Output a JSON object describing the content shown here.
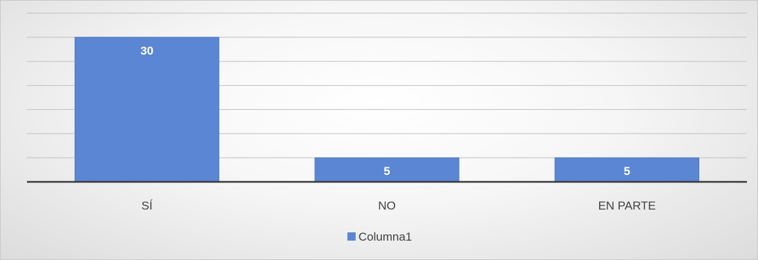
{
  "chart_data": {
    "type": "bar",
    "categories": [
      "SÍ",
      "NO",
      "EN PARTE"
    ],
    "series": [
      {
        "name": "Columna1",
        "values": [
          30,
          5,
          5
        ]
      }
    ],
    "ylim": [
      0,
      35
    ],
    "y_step": 5,
    "grid": true,
    "y_axis_labels": false,
    "data_labels": true,
    "legend_position": "bottom",
    "colors": {
      "bar": "#5b86d3",
      "bar_border": "#4f79c4",
      "gridline": "#bfbfbf",
      "axis": "#3a3a3a",
      "data_label": "#ffffff",
      "text": "#404040"
    }
  }
}
